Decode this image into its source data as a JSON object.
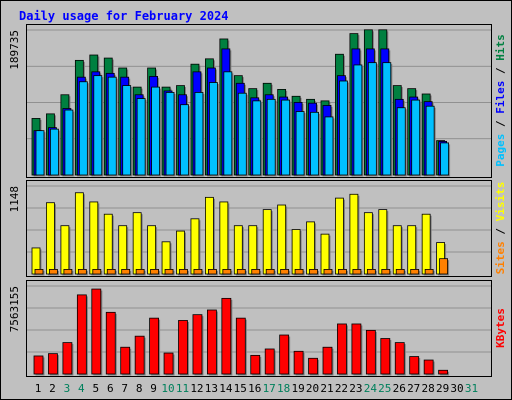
{
  "chart_data": {
    "type": "bar",
    "title": "Daily usage for February 2024",
    "days": [
      "1",
      "2",
      "3",
      "4",
      "5",
      "6",
      "7",
      "8",
      "9",
      "10",
      "11",
      "12",
      "13",
      "14",
      "15",
      "16",
      "17",
      "18",
      "19",
      "20",
      "21",
      "22",
      "23",
      "24",
      "25",
      "26",
      "27",
      "28",
      "29",
      "30",
      "31"
    ],
    "weekend_days": [
      3,
      4,
      10,
      11,
      17,
      18,
      24,
      25,
      31
    ],
    "panels": [
      {
        "id": "hits",
        "ylabel_parts": [
          "Pages",
          "Files",
          "Hits"
        ],
        "ymax_label": "189735",
        "ymax": 189735,
        "series": [
          {
            "name": "Hits",
            "values": [
              74000,
              80000,
              105000,
              150000,
              157000,
              153000,
              140000,
              115000,
              140000,
              115000,
              117000,
              145000,
              152000,
              178000,
              130000,
              113000,
              120000,
              112000,
              103000,
              99000,
              97000,
              158000,
              185000,
              190000,
              190000,
              117000,
              113000,
              106000,
              45000,
              0,
              0
            ]
          },
          {
            "name": "Files",
            "values": [
              58000,
              62000,
              87000,
              128000,
              135000,
              133000,
              128000,
              105000,
              129000,
              110000,
              105000,
              135000,
              140000,
              165000,
              120000,
              101000,
              105000,
              102000,
              95000,
              94000,
              91000,
              130000,
              165000,
              165000,
              165000,
              99000,
              102000,
              96000,
              44000,
              0,
              0
            ]
          },
          {
            "name": "Pages",
            "values": [
              58000,
              60000,
              85000,
              122000,
              130000,
              128000,
              117000,
              100000,
              115000,
              108000,
              92000,
              108000,
              121000,
              135000,
              107000,
              97000,
              99000,
              98000,
              83000,
              82000,
              76000,
              123000,
              144000,
              147000,
              147000,
              88000,
              98000,
              90000,
              42000,
              0,
              0
            ]
          }
        ]
      },
      {
        "id": "visits",
        "ylabel_parts": [
          "Sites",
          "Visits"
        ],
        "ymax_label": "1148",
        "ymax": 1148,
        "series": [
          {
            "name": "Visits",
            "values": [
              340,
              930,
              630,
              1060,
              940,
              780,
              630,
              800,
              630,
              420,
              560,
              720,
              1000,
              940,
              630,
              630,
              840,
              900,
              580,
              680,
              520,
              990,
              1040,
              800,
              840,
              630,
              630,
              780,
              410,
              0,
              0
            ]
          },
          {
            "name": "Sites",
            "values": [
              60,
              60,
              60,
              60,
              60,
              60,
              60,
              60,
              60,
              60,
              60,
              60,
              60,
              60,
              60,
              60,
              60,
              60,
              60,
              60,
              60,
              60,
              60,
              60,
              60,
              60,
              60,
              60,
              200,
              0,
              0
            ]
          }
        ]
      },
      {
        "id": "kbytes",
        "ylabel_parts": [
          "KBytes"
        ],
        "ymax_label": "7563155",
        "ymax": 7563155,
        "series": [
          {
            "name": "KBytes",
            "values": [
              1550000,
              1750000,
              2700000,
              6800000,
              7300000,
              5300000,
              2300000,
              3250000,
              4800000,
              1800000,
              4600000,
              5100000,
              5500000,
              6500000,
              4800000,
              1600000,
              2150000,
              3350000,
              1950000,
              1350000,
              2300000,
              4300000,
              4300000,
              3750000,
              3050000,
              2700000,
              1500000,
              1200000,
              320000,
              0,
              0
            ]
          }
        ]
      }
    ],
    "colors": {
      "hits": "#008040",
      "files": "#0000ff",
      "pages": "#00c0ff",
      "visits": "#ffff00",
      "sites": "#ff8000",
      "kbytes": "#ff0000",
      "title": "#0000ff",
      "weekend": "#00805c",
      "panel_bg": "#c0c0c0",
      "frame_bg": "#c0c0c0"
    }
  }
}
